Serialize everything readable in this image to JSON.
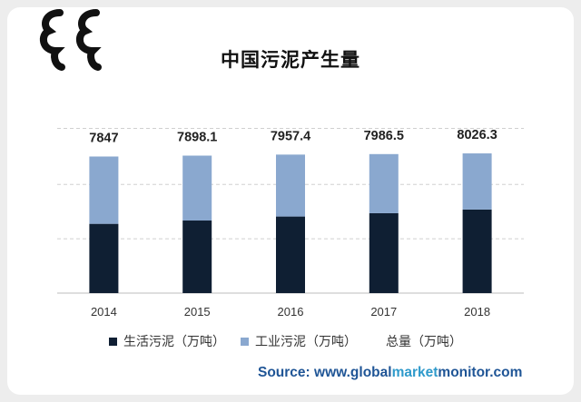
{
  "chart_data": {
    "type": "bar",
    "stacked": true,
    "title": "中国污泥产生量",
    "categories": [
      "2014",
      "2015",
      "2016",
      "2017",
      "2018"
    ],
    "series": [
      {
        "name": "生活污泥（万吨）",
        "values": [
          3980,
          4170,
          4400,
          4590,
          4800
        ],
        "color": "#0f1f33"
      },
      {
        "name": "工业污泥（万吨）",
        "values": [
          3867,
          3728.1,
          3557.4,
          3396.5,
          3226.3
        ],
        "color": "#8aa8cf"
      }
    ],
    "totals_label": "总量（万吨）",
    "totals": [
      "7847",
      "7898.1",
      "7957.4",
      "7986.5",
      "8026.3"
    ],
    "ylim": [
      0,
      11000
    ],
    "grid": true,
    "legend_position": "bottom"
  },
  "source": {
    "prefix": "Source: www.",
    "global": "global",
    "market": "market",
    "monitor": "monitor",
    "suffix": ".com"
  }
}
